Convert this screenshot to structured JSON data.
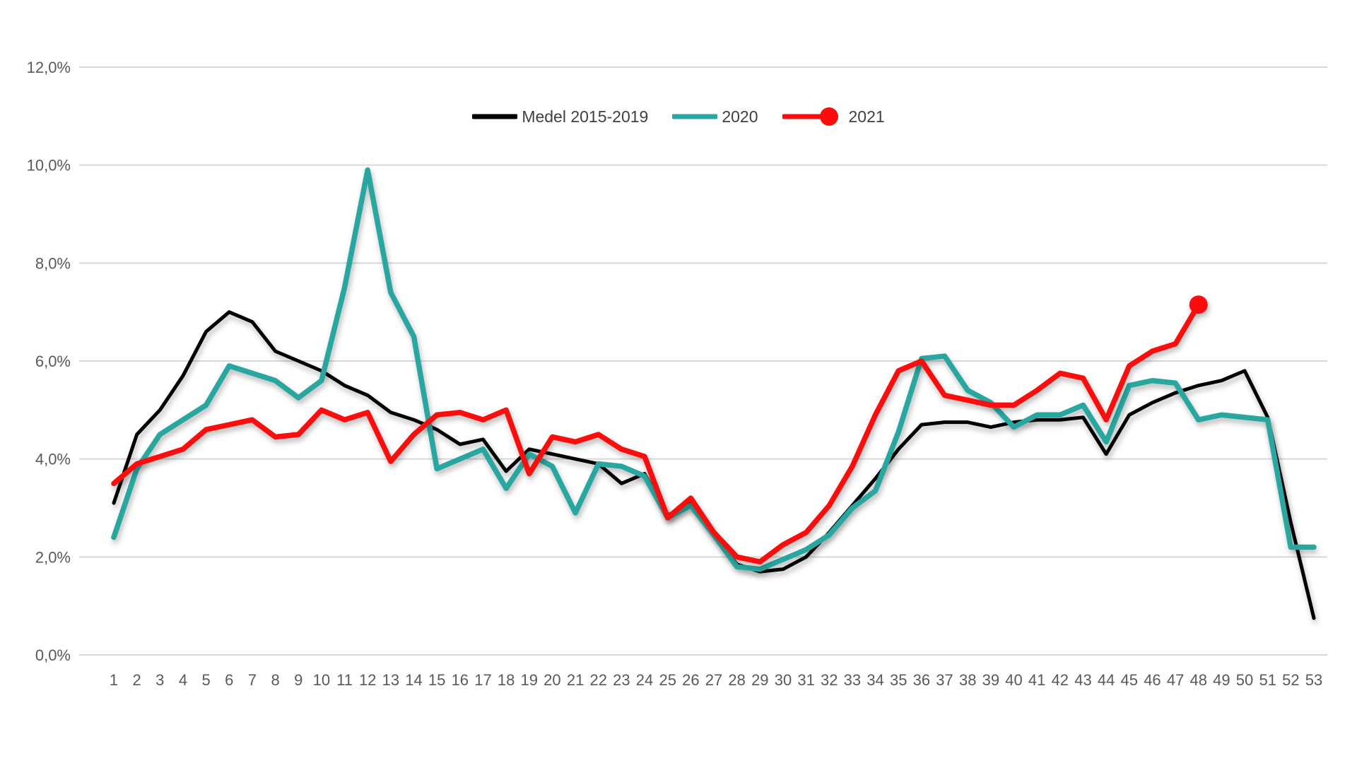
{
  "chart_data": {
    "type": "line",
    "title": "",
    "xlabel": "",
    "ylabel": "",
    "x_categories": [
      1,
      2,
      3,
      4,
      5,
      6,
      7,
      8,
      9,
      10,
      11,
      12,
      13,
      14,
      15,
      16,
      17,
      18,
      19,
      20,
      21,
      22,
      23,
      24,
      25,
      26,
      27,
      28,
      29,
      30,
      31,
      32,
      33,
      34,
      35,
      36,
      37,
      38,
      39,
      40,
      41,
      42,
      43,
      44,
      45,
      46,
      47,
      48,
      49,
      50,
      51,
      52,
      53
    ],
    "y_ticks": [
      "0,0%",
      "2,0%",
      "4,0%",
      "6,0%",
      "8,0%",
      "10,0%",
      "12,0%"
    ],
    "ylim": [
      0,
      12
    ],
    "y_step": 2,
    "grid": true,
    "legend_position": "top-center",
    "grid_color": "#D9D9D9",
    "tick_color": "#595959",
    "series": [
      {
        "name": "Medel 2015-2019",
        "color": "#000000",
        "stroke_width": 5,
        "end_marker": false,
        "values": [
          3.1,
          4.5,
          5.0,
          5.7,
          6.6,
          7.0,
          6.8,
          6.2,
          6.0,
          5.8,
          5.5,
          5.3,
          4.95,
          4.8,
          4.6,
          4.3,
          4.4,
          3.75,
          4.2,
          4.1,
          4.0,
          3.9,
          3.5,
          3.7,
          2.85,
          3.1,
          2.45,
          1.85,
          1.7,
          1.75,
          2.0,
          2.5,
          3.05,
          3.6,
          4.2,
          4.7,
          4.75,
          4.75,
          4.65,
          4.75,
          4.8,
          4.8,
          4.85,
          4.1,
          4.9,
          5.15,
          5.35,
          5.5,
          5.6,
          5.8,
          4.85,
          2.7,
          0.75
        ]
      },
      {
        "name": "2020",
        "color": "#2AA6A0",
        "stroke_width": 7.5,
        "end_marker": false,
        "values": [
          2.4,
          3.8,
          4.5,
          4.8,
          5.1,
          5.9,
          5.75,
          5.6,
          5.25,
          5.6,
          7.5,
          9.9,
          7.4,
          6.5,
          3.8,
          4.0,
          4.2,
          3.4,
          4.1,
          3.85,
          2.9,
          3.9,
          3.85,
          3.65,
          2.8,
          3.05,
          2.45,
          1.8,
          1.75,
          1.95,
          2.15,
          2.45,
          3.0,
          3.35,
          4.55,
          6.05,
          6.1,
          5.4,
          5.15,
          4.65,
          4.9,
          4.9,
          5.1,
          4.35,
          5.5,
          5.6,
          5.55,
          4.8,
          4.9,
          4.85,
          4.8,
          2.2,
          2.2
        ]
      },
      {
        "name": "2021",
        "color": "#FB0D0D",
        "stroke_width": 7.5,
        "end_marker": true,
        "values": [
          3.5,
          3.9,
          4.05,
          4.2,
          4.6,
          4.7,
          4.8,
          4.45,
          4.5,
          5.0,
          4.8,
          4.95,
          3.95,
          4.5,
          4.9,
          4.95,
          4.8,
          5.0,
          3.7,
          4.45,
          4.35,
          4.5,
          4.2,
          4.05,
          2.8,
          3.2,
          2.5,
          2.0,
          1.9,
          2.25,
          2.5,
          3.05,
          3.85,
          4.9,
          5.8,
          6.0,
          5.3,
          5.2,
          5.1,
          5.1,
          5.4,
          5.75,
          5.65,
          4.8,
          5.9,
          6.2,
          6.35,
          7.15,
          null,
          null,
          null,
          null,
          null
        ]
      }
    ]
  },
  "legend": {
    "items": [
      {
        "label": "Medel 2015-2019"
      },
      {
        "label": "2020"
      },
      {
        "label": "2021"
      }
    ]
  }
}
